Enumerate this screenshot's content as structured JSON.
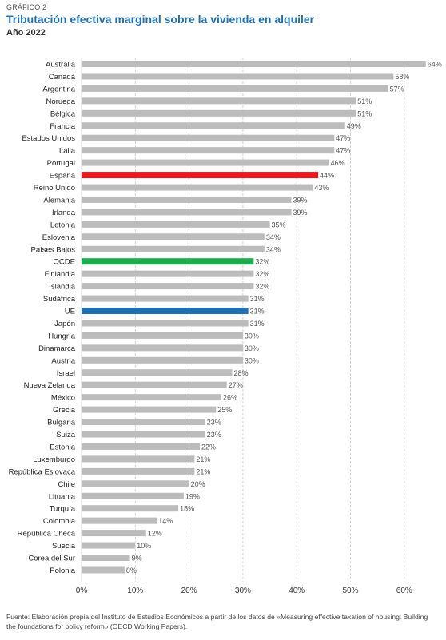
{
  "header": {
    "kicker": "GRÁFICO 2",
    "title": "Tributación efectiva marginal sobre la vivienda en alquiler",
    "subtitle": "Año 2022"
  },
  "chart_data": {
    "type": "bar",
    "orientation": "horizontal",
    "title": "Tributación efectiva marginal sobre la vivienda en alquiler",
    "subtitle": "Año 2022",
    "categories": [
      "Australia",
      "Canadá",
      "Argentina",
      "Noruega",
      "Bélgica",
      "Francia",
      "Estados Unidos",
      "Italia",
      "Portugal",
      "España",
      "Reino Unido",
      "Alemania",
      "Irlanda",
      "Letonia",
      "Eslovenia",
      "Países Bajos",
      "OCDE",
      "Finlandia",
      "Islandia",
      "Sudáfrica",
      "UE",
      "Japón",
      "Hungría",
      "Dinamarca",
      "Austria",
      "Israel",
      "Nueva Zelanda",
      "México",
      "Grecia",
      "Bulgaria",
      "Suiza",
      "Estonia",
      "Luxemburgo",
      "República Eslovaca",
      "Chile",
      "Lituania",
      "Turquía",
      "Colombia",
      "República Checa",
      "Suecia",
      "Corea del Sur",
      "Polonia"
    ],
    "values": [
      64,
      58,
      57,
      51,
      51,
      49,
      47,
      47,
      46,
      44,
      43,
      39,
      39,
      35,
      34,
      34,
      32,
      32,
      32,
      31,
      31,
      31,
      30,
      30,
      30,
      28,
      27,
      26,
      25,
      23,
      23,
      22,
      21,
      21,
      20,
      19,
      18,
      14,
      12,
      10,
      9,
      8
    ],
    "value_labels": [
      "64%",
      "58%",
      "57%",
      "51%",
      "51%",
      "49%",
      "47%",
      "47%",
      "46%",
      "44%",
      "43%",
      "39%",
      "39%",
      "35%",
      "34%",
      "34%",
      "32%",
      "32%",
      "32%",
      "31%",
      "31%",
      "31%",
      "30%",
      "30%",
      "30%",
      "28%",
      "27%",
      "26%",
      "25%",
      "23%",
      "23%",
      "22%",
      "21%",
      "21%",
      "20%",
      "19%",
      "18%",
      "14%",
      "12%",
      "10%",
      "9%",
      "8%"
    ],
    "highlights": {
      "España": "#e8191f",
      "OCDE": "#1eab4f",
      "UE": "#1f6fb2"
    },
    "default_color": "#bcbcbc",
    "xlim": [
      0,
      65
    ],
    "xticks": [
      0,
      10,
      20,
      30,
      40,
      50,
      60
    ],
    "xtick_labels": [
      "0%",
      "10%",
      "20%",
      "30%",
      "40%",
      "50%",
      "60%"
    ],
    "grid": "vertical dashed"
  },
  "source": "Fuente: Elaboración propia del Instituto de Estudios Económicos a partir de los datos de «Measuring effective taxation of housing: Building the foundations for policy reform» (OECD Working Papers)."
}
